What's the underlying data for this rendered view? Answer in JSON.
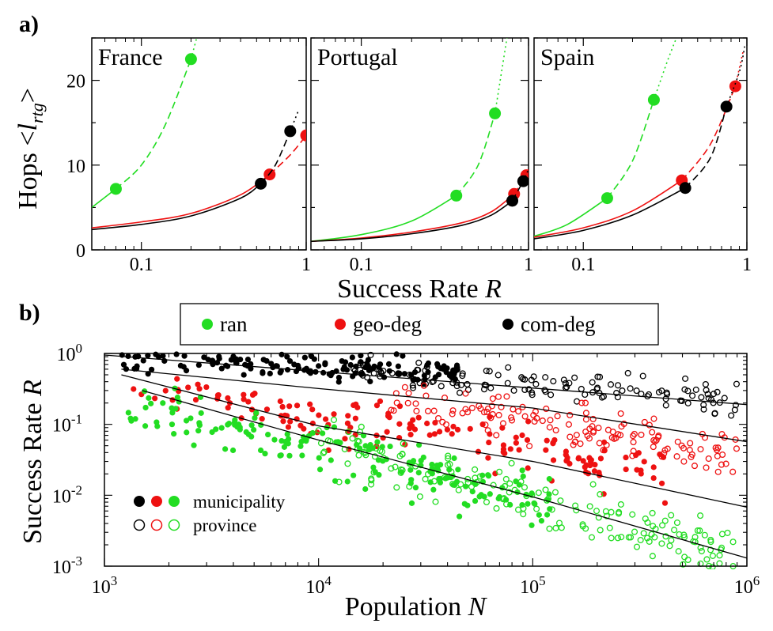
{
  "figure": {
    "panel_a_letter": "a)",
    "panel_b_letter": "b)"
  },
  "chart_data": [
    {
      "type": "line",
      "title": "France",
      "xlabel": "Success Rate R",
      "ylabel": "Hops <l_rtg>",
      "xscale": "log",
      "xlim": [
        0.05,
        1
      ],
      "ylim": [
        0,
        25
      ],
      "xticks": [
        "0.1",
        "1"
      ],
      "yticks": [
        "0",
        "10",
        "20"
      ],
      "series": [
        {
          "color": "#22dd22",
          "x": [
            0.05,
            0.07,
            0.1,
            0.14,
            0.2,
            0.22
          ],
          "y": [
            5.0,
            7.2,
            10.0,
            14.8,
            22.5,
            25.5
          ],
          "markers": [
            [
              0.07,
              7.2
            ],
            [
              0.2,
              22.5
            ]
          ]
        },
        {
          "color": "#ee1111",
          "x": [
            0.05,
            0.1,
            0.2,
            0.4,
            0.6,
            0.8,
            1.0
          ],
          "y": [
            2.6,
            3.3,
            4.3,
            6.5,
            8.9,
            11.2,
            13.5
          ],
          "markers": [
            [
              0.6,
              8.9
            ],
            [
              1.0,
              13.5
            ]
          ]
        },
        {
          "color": "#000000",
          "x": [
            0.05,
            0.1,
            0.2,
            0.4,
            0.53,
            0.65,
            0.8,
            0.9
          ],
          "y": [
            2.4,
            3.0,
            4.0,
            6.1,
            7.8,
            10.0,
            14.0,
            16.5
          ],
          "markers": [
            [
              0.53,
              7.8
            ],
            [
              0.8,
              14.0
            ]
          ]
        }
      ]
    },
    {
      "type": "line",
      "title": "Portugal",
      "xlabel": "Success Rate R",
      "ylabel": "Hops <l_rtg>",
      "xscale": "log",
      "xlim": [
        0.05,
        1
      ],
      "ylim": [
        0,
        25
      ],
      "xticks": [
        "0.1",
        "1"
      ],
      "yticks": [
        "0",
        "10",
        "20"
      ],
      "series": [
        {
          "color": "#22dd22",
          "x": [
            0.05,
            0.1,
            0.2,
            0.37,
            0.5,
            0.63,
            0.75
          ],
          "y": [
            1.0,
            1.8,
            3.4,
            6.4,
            10.0,
            16.1,
            25.5
          ],
          "markers": [
            [
              0.37,
              6.4
            ],
            [
              0.63,
              16.1
            ]
          ]
        },
        {
          "color": "#ee1111",
          "x": [
            0.05,
            0.1,
            0.2,
            0.4,
            0.6,
            0.82,
            0.97,
            1.0
          ],
          "y": [
            1.0,
            1.4,
            2.1,
            3.2,
            4.5,
            6.6,
            8.8,
            9.5
          ],
          "markers": [
            [
              0.82,
              6.6
            ],
            [
              0.97,
              8.8
            ]
          ]
        },
        {
          "color": "#000000",
          "x": [
            0.05,
            0.1,
            0.2,
            0.4,
            0.6,
            0.8,
            0.93,
            1.0
          ],
          "y": [
            1.0,
            1.3,
            1.9,
            2.9,
            4.1,
            5.8,
            8.1,
            9.5
          ],
          "markers": [
            [
              0.8,
              5.8
            ],
            [
              0.93,
              8.1
            ]
          ]
        }
      ]
    },
    {
      "type": "line",
      "title": "Spain",
      "xlabel": "Success Rate R",
      "ylabel": "Hops <l_rtg>",
      "xscale": "log",
      "xlim": [
        0.05,
        1
      ],
      "ylim": [
        0,
        25
      ],
      "xticks": [
        "0.1",
        "1"
      ],
      "yticks": [
        "0",
        "10",
        "20"
      ],
      "series": [
        {
          "color": "#22dd22",
          "x": [
            0.05,
            0.08,
            0.14,
            0.2,
            0.27,
            0.33,
            0.38
          ],
          "y": [
            1.6,
            3.0,
            6.1,
            10.5,
            17.7,
            22.5,
            25.5
          ],
          "markers": [
            [
              0.14,
              6.1
            ],
            [
              0.27,
              17.7
            ]
          ]
        },
        {
          "color": "#ee1111",
          "x": [
            0.05,
            0.1,
            0.2,
            0.4,
            0.6,
            0.85,
            0.95
          ],
          "y": [
            1.5,
            2.6,
            4.6,
            8.2,
            12.5,
            19.3,
            23.5
          ],
          "markers": [
            [
              0.4,
              8.2
            ],
            [
              0.85,
              19.3
            ]
          ]
        },
        {
          "color": "#000000",
          "x": [
            0.05,
            0.1,
            0.2,
            0.42,
            0.6,
            0.75,
            0.9,
            0.97
          ],
          "y": [
            1.3,
            2.3,
            4.1,
            7.3,
            10.9,
            16.9,
            21.0,
            24.0
          ],
          "markers": [
            [
              0.42,
              7.3
            ],
            [
              0.75,
              16.9
            ]
          ]
        }
      ]
    },
    {
      "type": "scatter",
      "xlabel": "Population N",
      "ylabel": "Success Rate R",
      "xscale": "log",
      "yscale": "log",
      "xlim": [
        1000,
        1000000
      ],
      "ylim": [
        0.001,
        1
      ],
      "xticks": [
        {
          "base": "10",
          "exp": "3"
        },
        {
          "base": "10",
          "exp": "4"
        },
        {
          "base": "10",
          "exp": "5"
        },
        {
          "base": "10",
          "exp": "6"
        }
      ],
      "yticks": [
        {
          "base": "10",
          "exp": "0"
        },
        {
          "base": "10",
          "exp": "-1"
        },
        {
          "base": "10",
          "exp": "-2"
        },
        {
          "base": "10",
          "exp": "-3"
        }
      ],
      "legend": {
        "placement": "top",
        "entries": [
          {
            "label": "ran",
            "color": "#22dd22"
          },
          {
            "label": "geo-deg",
            "color": "#ee1111"
          },
          {
            "label": "com-deg",
            "color": "#000000"
          }
        ]
      },
      "legend2": {
        "placement": "bottom-left",
        "entries": [
          {
            "label": "municipality",
            "filled": true
          },
          {
            "label": "province",
            "filled": false
          }
        ]
      },
      "fit_lines": [
        {
          "x": [
            1000,
            1000000
          ],
          "y": [
            0.95,
            0.19
          ]
        },
        {
          "x": [
            1200,
            10000,
            100000,
            1000000
          ],
          "y": [
            0.6,
            0.32,
            0.17,
            0.057
          ]
        },
        {
          "x": [
            1200,
            10000,
            100000,
            1000000
          ],
          "y": [
            0.5,
            0.095,
            0.03,
            0.0068
          ]
        },
        {
          "x": [
            1500,
            10000,
            100000,
            1000000
          ],
          "y": [
            0.3,
            0.06,
            0.0095,
            0.0013
          ]
        }
      ],
      "series": [
        {
          "name": "com-deg municipality",
          "color": "#000000",
          "filled": true,
          "x_range": [
            1200,
            45000
          ],
          "center": [
            0.85,
            0.55
          ],
          "spread": 0.18,
          "n": 150,
          "seed": 11
        },
        {
          "name": "com-deg province",
          "color": "#000000",
          "filled": false,
          "x_range": [
            12000,
            900000
          ],
          "center": [
            0.65,
            0.22
          ],
          "spread": 0.2,
          "n": 130,
          "seed": 23
        },
        {
          "name": "geo-deg municipality",
          "color": "#ee1111",
          "filled": true,
          "x_range": [
            1200,
            420000
          ],
          "center": [
            0.35,
            0.02
          ],
          "spread": 0.35,
          "n": 160,
          "seed": 37
        },
        {
          "name": "geo-deg province",
          "color": "#ee1111",
          "filled": false,
          "x_range": [
            20000,
            900000
          ],
          "center": [
            0.25,
            0.035
          ],
          "spread": 0.3,
          "n": 140,
          "seed": 41
        },
        {
          "name": "ran municipality",
          "color": "#22dd22",
          "filled": true,
          "x_range": [
            1200,
            120000
          ],
          "center": [
            0.2,
            0.008
          ],
          "spread": 0.35,
          "n": 180,
          "seed": 53
        },
        {
          "name": "ran province",
          "color": "#22dd22",
          "filled": false,
          "x_range": [
            10000,
            900000
          ],
          "center": [
            0.06,
            0.0013
          ],
          "spread": 0.35,
          "n": 180,
          "seed": 67
        }
      ]
    }
  ]
}
